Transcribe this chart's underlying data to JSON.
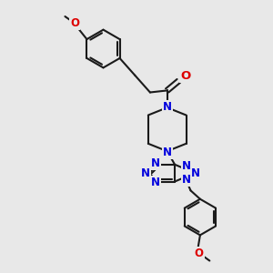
{
  "bg_color": "#e8e8e8",
  "bond_color": "#1a1a1a",
  "N_color": "#0000dd",
  "O_color": "#dd0000",
  "lw": 1.5,
  "fs": 8.5,
  "figsize": [
    3.0,
    3.0
  ],
  "dpi": 100,
  "xlim": [
    30,
    230
  ],
  "ylim": [
    10,
    295
  ]
}
